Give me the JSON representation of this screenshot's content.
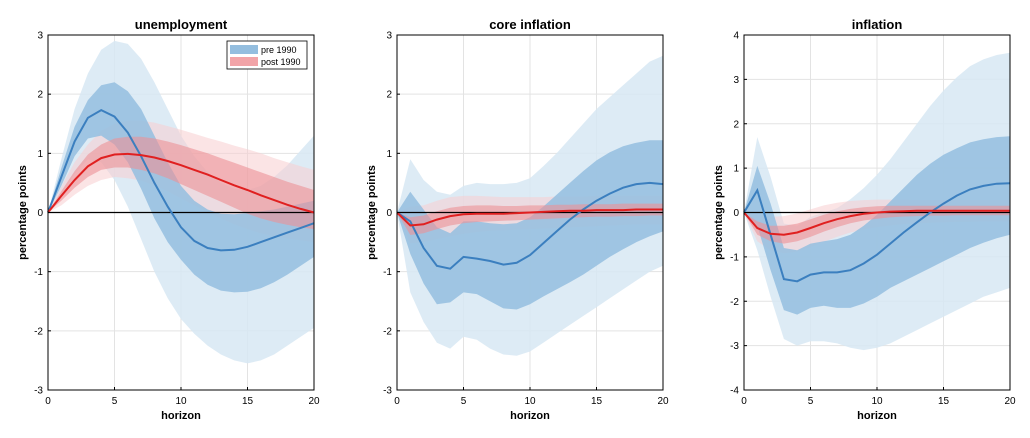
{
  "chart_data": [
    {
      "type": "line",
      "title": "unemployment",
      "xlabel": "horizon",
      "ylabel": "percentage points",
      "xlim": [
        0,
        20
      ],
      "ylim": [
        -3,
        3
      ],
      "xticks": [
        0,
        5,
        10,
        15,
        20
      ],
      "yticks": [
        -3,
        -2,
        -1,
        0,
        1,
        2,
        3
      ],
      "grid": true,
      "legend": {
        "placement": "top-right",
        "entries": [
          "pre 1990",
          "post 1990"
        ]
      },
      "x": [
        0,
        1,
        2,
        3,
        4,
        5,
        6,
        7,
        8,
        9,
        10,
        11,
        12,
        13,
        14,
        15,
        16,
        17,
        18,
        19,
        20
      ],
      "series": [
        {
          "name": "pre 1990",
          "color": "#3b7fbf",
          "median": [
            0,
            0.6,
            1.2,
            1.6,
            1.73,
            1.62,
            1.35,
            0.95,
            0.5,
            0.1,
            -0.25,
            -0.48,
            -0.6,
            -0.64,
            -0.63,
            -0.58,
            -0.5,
            -0.42,
            -0.34,
            -0.26,
            -0.18
          ],
          "inner_lo": [
            0,
            0.45,
            0.95,
            1.25,
            1.3,
            1.15,
            0.85,
            0.4,
            -0.1,
            -0.5,
            -0.8,
            -1.05,
            -1.22,
            -1.32,
            -1.35,
            -1.34,
            -1.28,
            -1.18,
            -1.05,
            -0.9,
            -0.75
          ],
          "inner_hi": [
            0,
            0.75,
            1.45,
            1.9,
            2.15,
            2.2,
            2.05,
            1.75,
            1.3,
            0.85,
            0.45,
            0.2,
            0.05,
            -0.02,
            -0.03,
            -0.01,
            0.02,
            0.05,
            0.1,
            0.15,
            0.2
          ],
          "outer_lo": [
            0,
            0.3,
            0.65,
            0.9,
            0.85,
            0.55,
            0.1,
            -0.45,
            -1.0,
            -1.45,
            -1.8,
            -2.05,
            -2.25,
            -2.4,
            -2.5,
            -2.55,
            -2.5,
            -2.4,
            -2.25,
            -2.1,
            -1.95
          ],
          "outer_hi": [
            0,
            0.9,
            1.75,
            2.35,
            2.75,
            2.9,
            2.85,
            2.6,
            2.2,
            1.75,
            1.3,
            0.95,
            0.68,
            0.5,
            0.4,
            0.38,
            0.45,
            0.6,
            0.8,
            1.05,
            1.3
          ]
        },
        {
          "name": "post 1990",
          "color": "#e02020",
          "median": [
            0,
            0.28,
            0.55,
            0.78,
            0.92,
            0.98,
            0.99,
            0.97,
            0.93,
            0.87,
            0.8,
            0.72,
            0.64,
            0.55,
            0.46,
            0.38,
            0.29,
            0.21,
            0.13,
            0.06,
            0.0
          ],
          "inner_lo": [
            0,
            0.2,
            0.42,
            0.6,
            0.72,
            0.76,
            0.76,
            0.72,
            0.66,
            0.58,
            0.48,
            0.38,
            0.28,
            0.18,
            0.08,
            -0.02,
            -0.1,
            -0.16,
            -0.21,
            -0.25,
            -0.28
          ],
          "inner_hi": [
            0,
            0.36,
            0.7,
            0.98,
            1.15,
            1.25,
            1.28,
            1.28,
            1.25,
            1.2,
            1.14,
            1.07,
            1.0,
            0.92,
            0.84,
            0.76,
            0.68,
            0.6,
            0.52,
            0.45,
            0.38
          ],
          "outer_lo": [
            0,
            0.12,
            0.3,
            0.45,
            0.55,
            0.6,
            0.58,
            0.54,
            0.46,
            0.36,
            0.24,
            0.12,
            0.0,
            -0.1,
            -0.2,
            -0.28,
            -0.35,
            -0.4,
            -0.44,
            -0.47,
            -0.5
          ],
          "outer_hi": [
            0,
            0.44,
            0.85,
            1.15,
            1.38,
            1.5,
            1.55,
            1.55,
            1.52,
            1.46,
            1.4,
            1.33,
            1.26,
            1.2,
            1.13,
            1.07,
            1.0,
            0.92,
            0.85,
            0.78,
            0.72
          ]
        }
      ]
    },
    {
      "type": "line",
      "title": "core inflation",
      "xlabel": "horizon",
      "ylabel": "percentage points",
      "xlim": [
        0,
        20
      ],
      "ylim": [
        -3,
        3
      ],
      "xticks": [
        0,
        5,
        10,
        15,
        20
      ],
      "yticks": [
        -3,
        -2,
        -1,
        0,
        1,
        2,
        3
      ],
      "grid": true,
      "x": [
        0,
        1,
        2,
        3,
        4,
        5,
        6,
        7,
        8,
        9,
        10,
        11,
        12,
        13,
        14,
        15,
        16,
        17,
        18,
        19,
        20
      ],
      "series": [
        {
          "name": "pre 1990",
          "color": "#3b7fbf",
          "median": [
            0,
            -0.15,
            -0.6,
            -0.9,
            -0.95,
            -0.75,
            -0.78,
            -0.82,
            -0.88,
            -0.85,
            -0.72,
            -0.52,
            -0.32,
            -0.12,
            0.05,
            0.2,
            0.32,
            0.42,
            0.48,
            0.5,
            0.48
          ],
          "inner_lo": [
            0,
            -0.7,
            -1.2,
            -1.55,
            -1.52,
            -1.35,
            -1.38,
            -1.5,
            -1.62,
            -1.64,
            -1.55,
            -1.42,
            -1.3,
            -1.18,
            -1.05,
            -0.9,
            -0.75,
            -0.62,
            -0.5,
            -0.4,
            -0.32
          ],
          "inner_hi": [
            0,
            0.35,
            0.05,
            -0.25,
            -0.35,
            -0.15,
            -0.15,
            -0.18,
            -0.2,
            -0.18,
            -0.08,
            0.1,
            0.3,
            0.5,
            0.7,
            0.88,
            1.02,
            1.12,
            1.18,
            1.22,
            1.22
          ],
          "outer_lo": [
            0,
            -1.35,
            -1.85,
            -2.2,
            -2.3,
            -2.1,
            -2.15,
            -2.3,
            -2.4,
            -2.42,
            -2.35,
            -2.2,
            -2.05,
            -1.9,
            -1.75,
            -1.6,
            -1.45,
            -1.3,
            -1.15,
            -1.0,
            -0.9
          ],
          "outer_hi": [
            0,
            0.9,
            0.55,
            0.35,
            0.3,
            0.45,
            0.5,
            0.48,
            0.48,
            0.5,
            0.58,
            0.78,
            1.0,
            1.25,
            1.5,
            1.75,
            1.95,
            2.15,
            2.35,
            2.55,
            2.65
          ]
        },
        {
          "name": "post 1990",
          "color": "#e02020",
          "median": [
            0,
            -0.22,
            -0.2,
            -0.12,
            -0.06,
            -0.03,
            -0.02,
            -0.02,
            -0.02,
            -0.01,
            0.0,
            0.01,
            0.02,
            0.03,
            0.03,
            0.04,
            0.04,
            0.04,
            0.05,
            0.05,
            0.05
          ],
          "inner_lo": [
            0,
            -0.38,
            -0.35,
            -0.28,
            -0.22,
            -0.18,
            -0.16,
            -0.15,
            -0.14,
            -0.13,
            -0.12,
            -0.11,
            -0.1,
            -0.09,
            -0.08,
            -0.07,
            -0.07,
            -0.06,
            -0.06,
            -0.05,
            -0.05
          ],
          "inner_hi": [
            0,
            -0.08,
            -0.05,
            0.02,
            0.08,
            0.11,
            0.12,
            0.12,
            0.11,
            0.11,
            0.12,
            0.12,
            0.13,
            0.13,
            0.14,
            0.14,
            0.14,
            0.15,
            0.15,
            0.15,
            0.15
          ],
          "outer_lo": [
            0,
            -0.52,
            -0.5,
            -0.45,
            -0.4,
            -0.36,
            -0.33,
            -0.31,
            -0.3,
            -0.29,
            -0.28,
            -0.27,
            -0.26,
            -0.25,
            -0.24,
            -0.23,
            -0.22,
            -0.21,
            -0.2,
            -0.2,
            -0.2
          ],
          "outer_hi": [
            0,
            0.1,
            0.12,
            0.2,
            0.26,
            0.28,
            0.28,
            0.27,
            0.26,
            0.26,
            0.26,
            0.26,
            0.27,
            0.27,
            0.27,
            0.28,
            0.28,
            0.28,
            0.28,
            0.28,
            0.28
          ]
        }
      ]
    },
    {
      "type": "line",
      "title": "inflation",
      "xlabel": "horizon",
      "ylabel": "percentage points",
      "xlim": [
        0,
        20
      ],
      "ylim": [
        -4,
        4
      ],
      "xticks": [
        0,
        5,
        10,
        15,
        20
      ],
      "yticks": [
        -4,
        -3,
        -2,
        -1,
        0,
        1,
        2,
        3,
        4
      ],
      "grid": true,
      "x": [
        0,
        1,
        2,
        3,
        4,
        5,
        6,
        7,
        8,
        9,
        10,
        11,
        12,
        13,
        14,
        15,
        16,
        17,
        18,
        19,
        20
      ],
      "series": [
        {
          "name": "pre 1990",
          "color": "#3b7fbf",
          "median": [
            0,
            0.5,
            -0.5,
            -1.5,
            -1.55,
            -1.4,
            -1.35,
            -1.35,
            -1.3,
            -1.15,
            -0.95,
            -0.7,
            -0.45,
            -0.22,
            0.0,
            0.2,
            0.38,
            0.52,
            0.6,
            0.65,
            0.66
          ],
          "inner_lo": [
            0,
            -0.3,
            -1.3,
            -2.2,
            -2.3,
            -2.15,
            -2.1,
            -2.15,
            -2.15,
            -2.05,
            -1.9,
            -1.7,
            -1.55,
            -1.4,
            -1.25,
            -1.1,
            -0.95,
            -0.8,
            -0.68,
            -0.58,
            -0.5
          ],
          "inner_hi": [
            0,
            1.05,
            0.2,
            -0.8,
            -0.85,
            -0.7,
            -0.65,
            -0.6,
            -0.5,
            -0.3,
            -0.05,
            0.25,
            0.55,
            0.85,
            1.1,
            1.3,
            1.45,
            1.58,
            1.65,
            1.7,
            1.72
          ],
          "outer_lo": [
            0,
            -0.85,
            -1.9,
            -2.85,
            -3.0,
            -2.9,
            -2.9,
            -2.95,
            -3.05,
            -3.1,
            -3.05,
            -2.95,
            -2.8,
            -2.65,
            -2.5,
            -2.35,
            -2.2,
            -2.05,
            -1.9,
            -1.8,
            -1.7
          ],
          "outer_hi": [
            0,
            1.7,
            0.8,
            -0.25,
            -0.3,
            -0.1,
            0.0,
            0.1,
            0.3,
            0.55,
            0.85,
            1.2,
            1.6,
            2.0,
            2.4,
            2.75,
            3.05,
            3.3,
            3.45,
            3.55,
            3.6
          ]
        },
        {
          "name": "post 1990",
          "color": "#e02020",
          "median": [
            0,
            -0.35,
            -0.48,
            -0.5,
            -0.45,
            -0.35,
            -0.24,
            -0.15,
            -0.08,
            -0.03,
            0.0,
            0.02,
            0.03,
            0.04,
            0.04,
            0.04,
            0.04,
            0.04,
            0.04,
            0.04,
            0.04
          ],
          "inner_lo": [
            0,
            -0.5,
            -0.65,
            -0.7,
            -0.65,
            -0.55,
            -0.43,
            -0.33,
            -0.24,
            -0.18,
            -0.14,
            -0.11,
            -0.09,
            -0.08,
            -0.07,
            -0.07,
            -0.06,
            -0.06,
            -0.06,
            -0.06,
            -0.06
          ],
          "inner_hi": [
            0,
            -0.2,
            -0.3,
            -0.3,
            -0.25,
            -0.15,
            -0.05,
            0.03,
            0.08,
            0.12,
            0.14,
            0.15,
            0.15,
            0.15,
            0.15,
            0.15,
            0.15,
            0.15,
            0.15,
            0.15,
            0.15
          ],
          "outer_lo": [
            0,
            -0.65,
            -0.85,
            -0.92,
            -0.88,
            -0.78,
            -0.66,
            -0.55,
            -0.45,
            -0.38,
            -0.33,
            -0.29,
            -0.26,
            -0.24,
            -0.23,
            -0.22,
            -0.21,
            -0.21,
            -0.2,
            -0.2,
            -0.2
          ],
          "outer_hi": [
            0,
            -0.05,
            -0.1,
            -0.08,
            -0.02,
            0.07,
            0.16,
            0.22,
            0.26,
            0.28,
            0.29,
            0.29,
            0.29,
            0.28,
            0.28,
            0.28,
            0.28,
            0.28,
            0.28,
            0.28,
            0.28
          ]
        }
      ]
    }
  ]
}
